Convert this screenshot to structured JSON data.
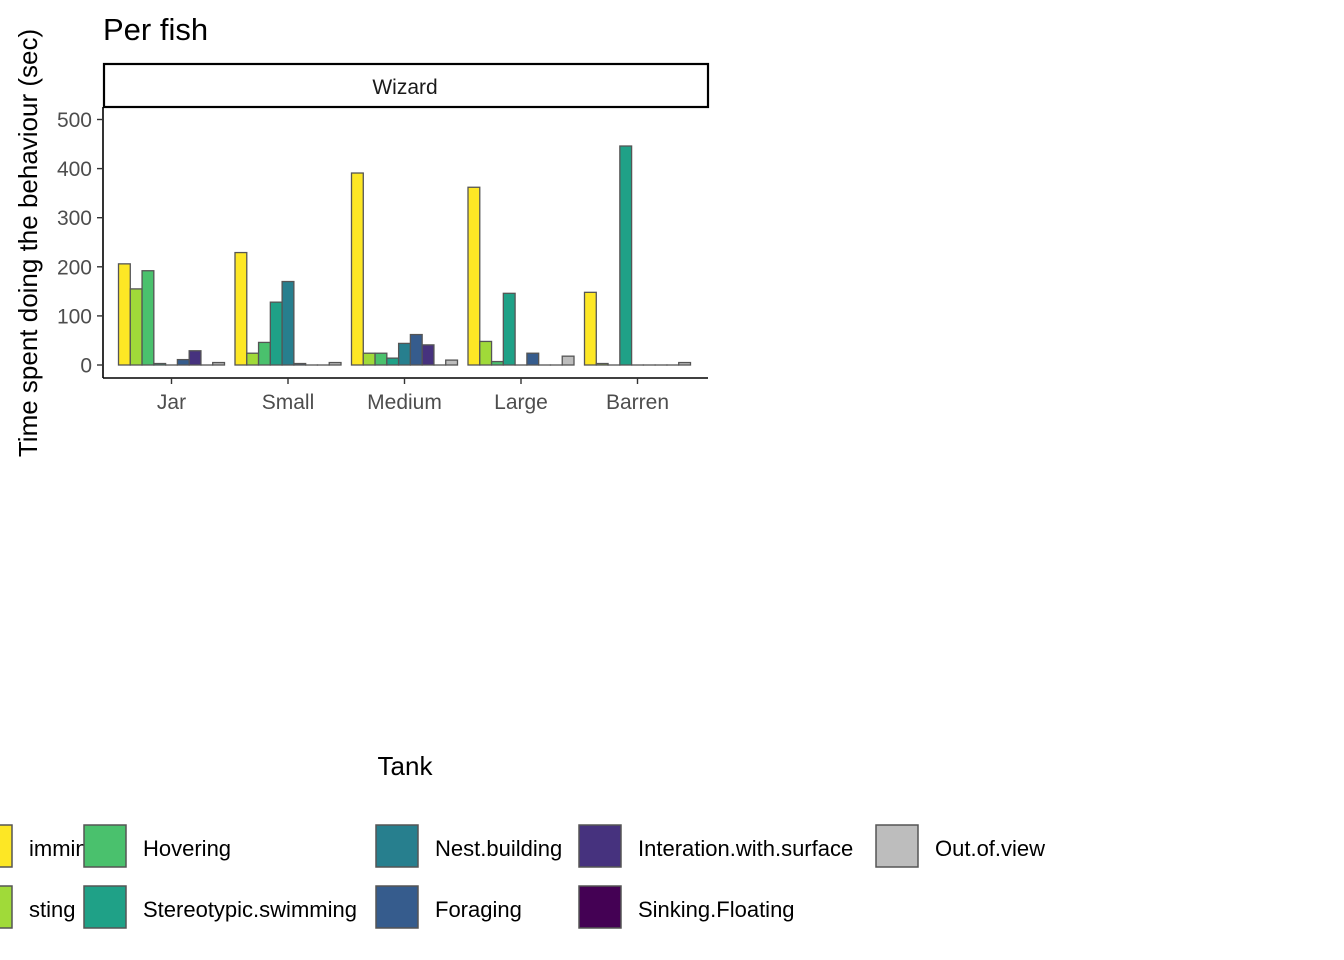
{
  "chart_data": {
    "type": "bar",
    "title": "Per fish",
    "facet": "Wizard",
    "xlabel": "Tank",
    "ylabel": "Time spent doing the behaviour (sec)",
    "ylim": [
      -25,
      525
    ],
    "yticks": [
      0,
      100,
      200,
      300,
      400,
      500
    ],
    "grid": false,
    "legend_position": "bottom",
    "categories": [
      "Jar",
      "Small",
      "Medium",
      "Large",
      "Barren"
    ],
    "series": [
      {
        "name": "Swimming",
        "legend_label": "imming",
        "color": "#FDE725",
        "values": [
          206,
          229,
          391,
          362,
          148
        ]
      },
      {
        "name": "Resting",
        "legend_label": "sting",
        "color": "#A0DA39",
        "values": [
          155,
          24,
          24,
          48,
          3
        ]
      },
      {
        "name": "Hovering",
        "color": "#4AC16D",
        "values": [
          192,
          46,
          24,
          7,
          0
        ]
      },
      {
        "name": "Stereotypic.swimming",
        "color": "#1FA187",
        "values": [
          3,
          128,
          14,
          146,
          446
        ]
      },
      {
        "name": "Nest.building",
        "color": "#277F8E",
        "values": [
          0,
          170,
          44,
          0,
          0
        ]
      },
      {
        "name": "Foraging",
        "color": "#365C8D",
        "values": [
          11,
          3,
          62,
          24,
          0
        ]
      },
      {
        "name": "Interation.with.surface",
        "color": "#46327E",
        "values": [
          29,
          0,
          41,
          0,
          0
        ]
      },
      {
        "name": "Sinking.Floating",
        "color": "#440154",
        "values": [
          0,
          0,
          0,
          0,
          0
        ]
      },
      {
        "name": "Out.of.view",
        "color": "#BDBDBD",
        "values": [
          5,
          5,
          10,
          18,
          5
        ]
      }
    ]
  }
}
